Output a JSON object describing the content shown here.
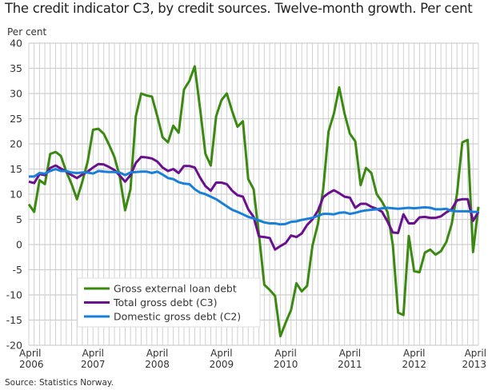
{
  "title": "The credit indicator C3, by credit sources. Twelve-month growth. Per cent",
  "source": "Source: Statistics Norway.",
  "chart_data": {
    "type": "line",
    "ylabel": "Per cent",
    "ylim": [
      -20,
      40
    ],
    "yticks": [
      40,
      35,
      30,
      25,
      20,
      15,
      10,
      5,
      0,
      -5,
      -10,
      -15,
      -20
    ],
    "x_start": "2006-04",
    "x_end": "2013-04",
    "frequency": "monthly",
    "xtick_labels": [
      {
        "month": "April",
        "year": "2006"
      },
      {
        "month": "April",
        "year": "2007"
      },
      {
        "month": "April",
        "year": "2008"
      },
      {
        "month": "April",
        "year": "2009"
      },
      {
        "month": "April",
        "year": "2010"
      },
      {
        "month": "April",
        "year": "2011"
      },
      {
        "month": "April",
        "year": "2012"
      },
      {
        "month": "April",
        "year": "2013"
      }
    ],
    "grid": true,
    "legend_position": "bottom-left",
    "series": [
      {
        "name": "Gross external loan debt",
        "color": "#3a8a12",
        "values": [
          8,
          6.5,
          12.8,
          12,
          18,
          18.4,
          17.6,
          14.5,
          12,
          9,
          12.5,
          16.5,
          22.8,
          23,
          22,
          19.8,
          17.4,
          13.5,
          6.8,
          11,
          25.5,
          30,
          29.6,
          29.4,
          25.5,
          21.3,
          20.3,
          23.6,
          22.2,
          30.8,
          32.5,
          35.4,
          27,
          18,
          15.7,
          25.5,
          28.7,
          30,
          26.5,
          23.4,
          24.5,
          13,
          11,
          2,
          -8,
          -9,
          -10.2,
          -18.2,
          -15.5,
          -13,
          -7.7,
          -9.3,
          -8.2,
          -0.2,
          4,
          11,
          22.5,
          26,
          31.2,
          26,
          22,
          20.5,
          11.8,
          15.2,
          14.2,
          10,
          8.5,
          6.5,
          0,
          -13.5,
          -14,
          1.7,
          -5.3,
          -5.5,
          -1.6,
          -1,
          -2,
          -1.3,
          0.5,
          4,
          10,
          20.3,
          20.8,
          -1.5,
          7.5
        ]
      },
      {
        "name": "Total gross debt (C3)",
        "color": "#6a0f8e",
        "values": [
          12.5,
          12.2,
          14,
          13.8,
          15.2,
          15.7,
          15.1,
          14.5,
          13.8,
          13.2,
          13.9,
          14.5,
          15.3,
          16,
          15.9,
          15.4,
          14.8,
          13.7,
          12.5,
          13.8,
          16.2,
          17.4,
          17.3,
          17.1,
          16.5,
          15.3,
          14.6,
          15,
          14.2,
          15.6,
          15.6,
          15.3,
          13.3,
          11.6,
          10.7,
          12.3,
          12.3,
          12,
          10.7,
          9.8,
          9.5,
          7,
          5.5,
          1.6,
          1.5,
          1.3,
          -1,
          -0.3,
          0.3,
          1.8,
          1.5,
          2.2,
          3.9,
          5,
          6.7,
          9.4,
          10.2,
          10.8,
          10.2,
          9.5,
          9.3,
          7.3,
          8.1,
          8.1,
          7.5,
          7.1,
          6.5,
          4.6,
          2.4,
          2.3,
          6,
          4.2,
          4.2,
          5.4,
          5.5,
          5.3,
          5.3,
          5.6,
          6.4,
          7,
          8.8,
          9,
          9,
          4.7,
          6.5
        ]
      },
      {
        "name": "Domestic gross debt (C2)",
        "color": "#1a7fd8",
        "values": [
          13.5,
          13.5,
          14.2,
          14.1,
          14.6,
          15,
          14.6,
          14.6,
          14.3,
          14.2,
          14.3,
          14.3,
          14.1,
          14.6,
          14.5,
          14.4,
          14.4,
          14.3,
          13.8,
          14.3,
          14.4,
          14.5,
          14.5,
          14.2,
          14.5,
          13.9,
          13.2,
          13,
          12.4,
          12.1,
          12,
          11,
          10.3,
          10,
          9.5,
          9,
          8.3,
          7.6,
          6.9,
          6.5,
          6,
          5.5,
          5.2,
          4.8,
          4.4,
          4.2,
          4.2,
          4,
          4.1,
          4.5,
          4.6,
          4.9,
          5.1,
          5.3,
          5.7,
          6.1,
          6.1,
          6,
          6.3,
          6.4,
          6.1,
          6.3,
          6.6,
          6.8,
          6.9,
          7,
          7.2,
          7.3,
          7.2,
          7.1,
          7.2,
          7.3,
          7.2,
          7.3,
          7.4,
          7.3,
          7,
          7,
          7.1,
          6.7,
          6.6,
          6.6,
          6.6,
          6.5,
          6.5
        ]
      }
    ]
  }
}
